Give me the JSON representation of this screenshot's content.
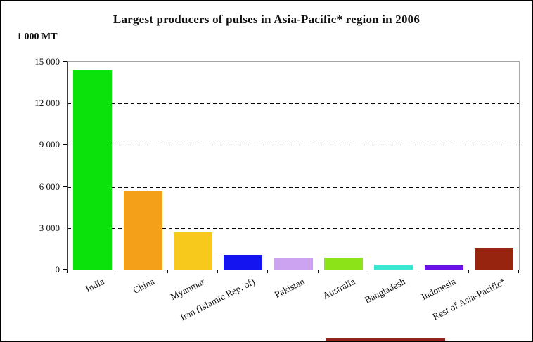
{
  "figure": {
    "title": "Largest producers of pulses in Asia-Pacific* region in 2006",
    "y_unit_label": "1 000 MT"
  },
  "chart_data": {
    "type": "bar",
    "title": "Largest producers of pulses in Asia-Pacific* region in 2006",
    "xlabel": "",
    "ylabel": "1 000 MT",
    "ylim": [
      0,
      15000
    ],
    "grid": "horizontal-dashed",
    "legend": "none",
    "categories": [
      "India",
      "China",
      "Myanmar",
      "Iran (Islamic Rep. of)",
      "Pakistan",
      "Australia",
      "Bangladesh",
      "Indonesia",
      "Rest of Asia-Pacific*"
    ],
    "values": [
      14400,
      5700,
      2700,
      1050,
      800,
      850,
      350,
      330,
      1550
    ],
    "bar_colors": [
      "#0BE20B",
      "#F5A019",
      "#F7C91C",
      "#1414F0",
      "#CCA3EE",
      "#8CE318",
      "#3DE6CE",
      "#6A12E6",
      "#97240F"
    ],
    "category_slugs": [
      "india",
      "china",
      "myanmar",
      "iran-islamic-rep-of",
      "pakistan",
      "australia",
      "bangladesh",
      "indonesia",
      "rest-of-asia-pacific"
    ],
    "yticks": [
      0,
      3000,
      6000,
      9000,
      12000,
      15000
    ],
    "ytick_labels": [
      "0",
      "3 000",
      "6 000",
      "9 000",
      "12 000",
      "15 000"
    ]
  }
}
